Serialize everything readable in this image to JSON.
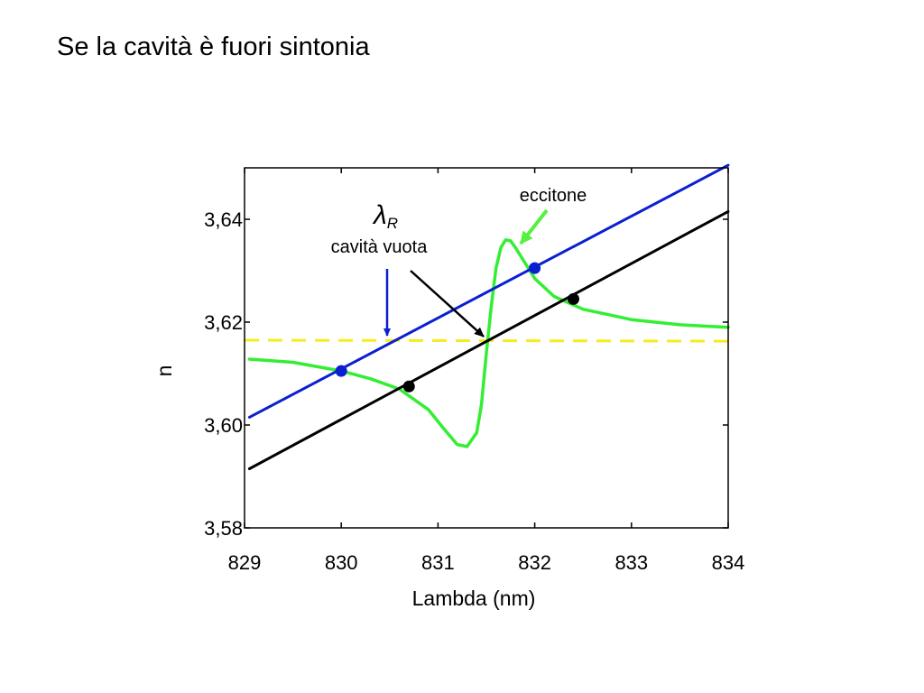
{
  "slide": {
    "title": "Se la cavità è fuori sintonia"
  },
  "chart_data": {
    "type": "line",
    "title": "",
    "xlabel": "Lambda (nm)",
    "ylabel": "n",
    "xlim": [
      829,
      834
    ],
    "ylim": [
      3.58,
      3.65
    ],
    "xticks": [
      829,
      830,
      831,
      832,
      833,
      834
    ],
    "yticks": [
      3.58,
      3.6,
      3.62,
      3.64
    ],
    "xtick_labels": [
      "829",
      "830",
      "831",
      "832",
      "833",
      "834"
    ],
    "ytick_labels": [
      "3,58",
      "3,60",
      "3,62",
      "3,64"
    ],
    "grid": false,
    "series": [
      {
        "key": "blue",
        "color": "#0a1fd0",
        "x": [
          829.05,
          834.0
        ],
        "y": [
          3.6015,
          3.6505
        ]
      },
      {
        "key": "black",
        "color": "#000000",
        "x": [
          829.05,
          834.0
        ],
        "y": [
          3.5915,
          3.6415
        ]
      },
      {
        "key": "yellow",
        "color": "#f5ec1e",
        "dashed": true,
        "x": [
          829.0,
          834.0
        ],
        "y": [
          3.6165,
          3.6163
        ]
      },
      {
        "key": "green",
        "color": "#33ee33",
        "x": [
          829.05,
          829.5,
          830.0,
          830.3,
          830.6,
          830.9,
          831.05,
          831.2,
          831.3,
          831.4,
          831.45,
          831.5,
          831.55,
          831.6,
          831.65,
          831.7,
          831.75,
          831.8,
          831.9,
          832.0,
          832.2,
          832.5,
          833.0,
          833.5,
          834.0
        ],
        "y": [
          3.6128,
          3.6122,
          3.6105,
          3.609,
          3.607,
          3.603,
          3.5995,
          3.5962,
          3.5958,
          3.5985,
          3.604,
          3.614,
          3.623,
          3.6305,
          3.6345,
          3.636,
          3.6358,
          3.6345,
          3.6315,
          3.6285,
          3.625,
          3.6225,
          3.6205,
          3.6195,
          3.619
        ]
      }
    ],
    "markers": [
      {
        "x": 830.0,
        "y": 3.6105,
        "color": "#0a1fd0"
      },
      {
        "x": 832.0,
        "y": 3.6305,
        "color": "#0a1fd0"
      },
      {
        "x": 830.7,
        "y": 3.6075,
        "color": "#000000"
      },
      {
        "x": 832.4,
        "y": 3.6245,
        "color": "#000000"
      }
    ],
    "annotations": {
      "lambda_symbol": "λ",
      "lambda_subscript": "R",
      "empty_cavity": "cavità vuota",
      "exciton": "eccitone"
    }
  }
}
